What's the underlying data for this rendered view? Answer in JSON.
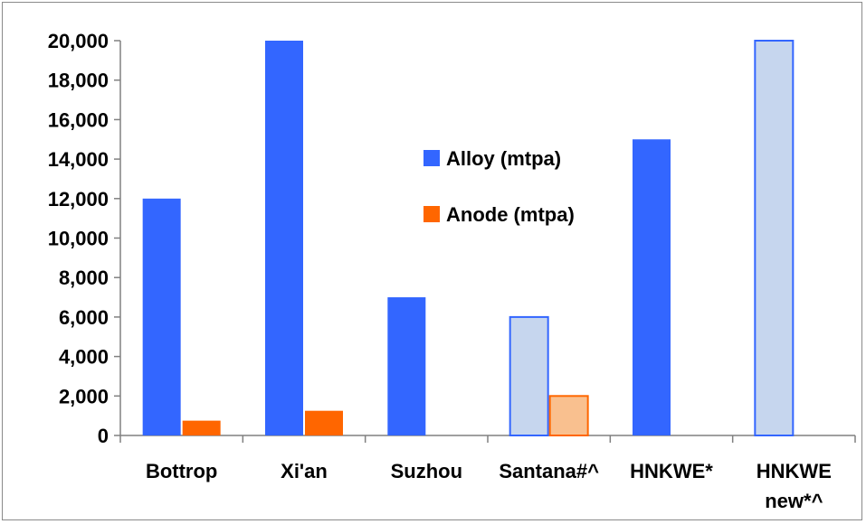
{
  "chart_data": {
    "type": "bar",
    "categories": [
      "Bottrop",
      "Xi'an",
      "Suzhou",
      "Santana#^",
      "HNKWE*",
      "HNKWE new*^"
    ],
    "category_lines": [
      [
        "Bottrop"
      ],
      [
        "Xi'an"
      ],
      [
        "Suzhou"
      ],
      [
        "Santana#^"
      ],
      [
        "HNKWE*"
      ],
      [
        "HNKWE",
        "new*^"
      ]
    ],
    "series": [
      {
        "name": "Alloy (mtpa)",
        "color": "#3366ff",
        "planned_color": "#c6d6ee",
        "values": [
          12000,
          20000,
          7000,
          6000,
          15000,
          20000
        ],
        "planned": [
          false,
          false,
          false,
          true,
          false,
          true
        ]
      },
      {
        "name": "Anode (mtpa)",
        "color": "#ff6600",
        "planned_color": "#f9c08f",
        "values": [
          750,
          1250,
          null,
          2000,
          null,
          null
        ],
        "planned": [
          false,
          false,
          false,
          true,
          false,
          false
        ]
      }
    ],
    "ylim": [
      0,
      20000
    ],
    "yticks": [
      0,
      2000,
      4000,
      6000,
      8000,
      10000,
      12000,
      14000,
      16000,
      18000,
      20000
    ],
    "ytick_labels": [
      "0",
      "2,000",
      "4,000",
      "6,000",
      "8,000",
      "10,000",
      "12,000",
      "14,000",
      "16,000",
      "18,000",
      "20,000"
    ],
    "legend_position": "center",
    "grid": false
  }
}
